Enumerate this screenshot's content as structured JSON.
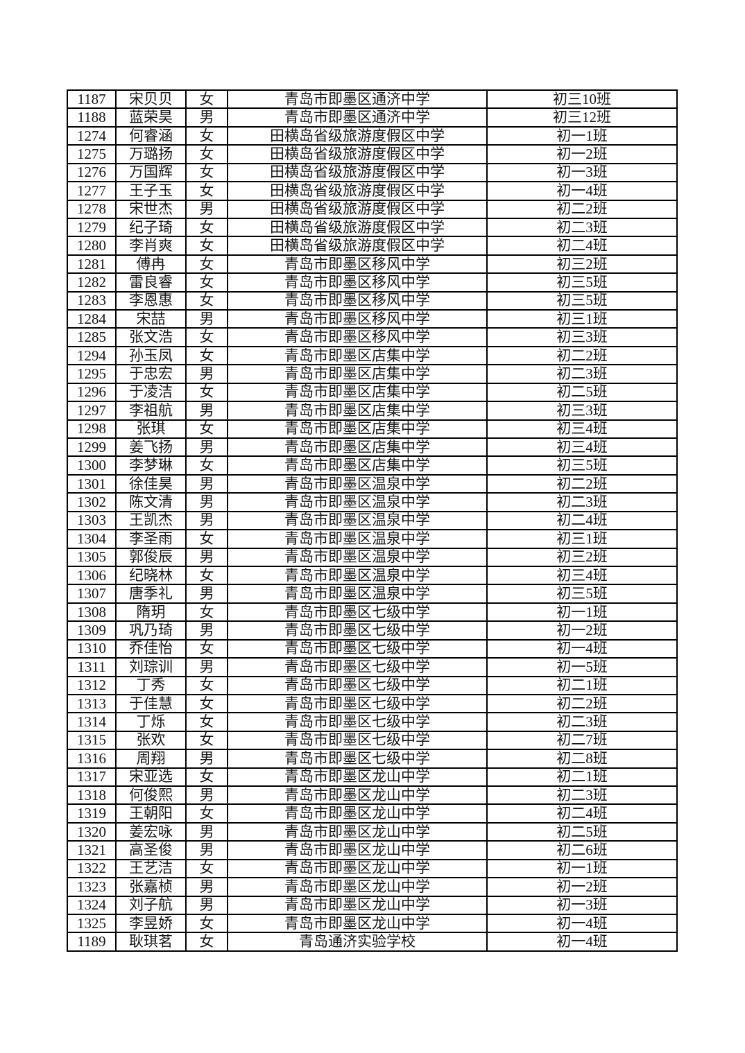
{
  "page": {
    "background_color": "#ffffff",
    "border_color": "#000000",
    "text_color": "#161616"
  },
  "table": {
    "rows": [
      {
        "id": "1187",
        "name": "宋贝贝",
        "gender": "女",
        "school": "青岛市即墨区通济中学",
        "class": "初三10班"
      },
      {
        "id": "1188",
        "name": "蓝荣昊",
        "gender": "男",
        "school": "青岛市即墨区通济中学",
        "class": "初三12班"
      },
      {
        "id": "1274",
        "name": "何睿涵",
        "gender": "女",
        "school": "田横岛省级旅游度假区中学",
        "class": "初一1班"
      },
      {
        "id": "1275",
        "name": "万璐扬",
        "gender": "女",
        "school": "田横岛省级旅游度假区中学",
        "class": "初一2班"
      },
      {
        "id": "1276",
        "name": "万国辉",
        "gender": "女",
        "school": "田横岛省级旅游度假区中学",
        "class": "初一3班"
      },
      {
        "id": "1277",
        "name": "王子玉",
        "gender": "女",
        "school": "田横岛省级旅游度假区中学",
        "class": "初一4班"
      },
      {
        "id": "1278",
        "name": "宋世杰",
        "gender": "男",
        "school": "田横岛省级旅游度假区中学",
        "class": "初二2班"
      },
      {
        "id": "1279",
        "name": "纪子琦",
        "gender": "女",
        "school": "田横岛省级旅游度假区中学",
        "class": "初二3班"
      },
      {
        "id": "1280",
        "name": "李肖爽",
        "gender": "女",
        "school": "田横岛省级旅游度假区中学",
        "class": "初二4班"
      },
      {
        "id": "1281",
        "name": "傅冉",
        "gender": "女",
        "school": "青岛市即墨区移风中学",
        "class": "初三2班"
      },
      {
        "id": "1282",
        "name": "雷良睿",
        "gender": "女",
        "school": "青岛市即墨区移风中学",
        "class": "初三5班"
      },
      {
        "id": "1283",
        "name": "李恩惠",
        "gender": "女",
        "school": "青岛市即墨区移风中学",
        "class": "初三5班"
      },
      {
        "id": "1284",
        "name": "宋喆",
        "gender": "男",
        "school": "青岛市即墨区移风中学",
        "class": "初三1班"
      },
      {
        "id": "1285",
        "name": "张文浩",
        "gender": "女",
        "school": "青岛市即墨区移风中学",
        "class": "初三3班"
      },
      {
        "id": "1294",
        "name": "孙玉凤",
        "gender": "女",
        "school": "青岛市即墨区店集中学",
        "class": "初二2班"
      },
      {
        "id": "1295",
        "name": "于忠宏",
        "gender": "男",
        "school": "青岛市即墨区店集中学",
        "class": "初二3班"
      },
      {
        "id": "1296",
        "name": "于凌洁",
        "gender": "女",
        "school": "青岛市即墨区店集中学",
        "class": "初二5班"
      },
      {
        "id": "1297",
        "name": "李祖航",
        "gender": "男",
        "school": "青岛市即墨区店集中学",
        "class": "初三3班"
      },
      {
        "id": "1298",
        "name": "张琪",
        "gender": "女",
        "school": "青岛市即墨区店集中学",
        "class": "初三4班"
      },
      {
        "id": "1299",
        "name": "姜飞扬",
        "gender": "男",
        "school": "青岛市即墨区店集中学",
        "class": "初三4班"
      },
      {
        "id": "1300",
        "name": "李梦琳",
        "gender": "女",
        "school": "青岛市即墨区店集中学",
        "class": "初三5班"
      },
      {
        "id": "1301",
        "name": "徐佳昊",
        "gender": "男",
        "school": "青岛市即墨区温泉中学",
        "class": "初二2班"
      },
      {
        "id": "1302",
        "name": "陈文清",
        "gender": "男",
        "school": "青岛市即墨区温泉中学",
        "class": "初二3班"
      },
      {
        "id": "1303",
        "name": "王凯杰",
        "gender": "男",
        "school": "青岛市即墨区温泉中学",
        "class": "初二4班"
      },
      {
        "id": "1304",
        "name": "李圣雨",
        "gender": "女",
        "school": "青岛市即墨区温泉中学",
        "class": "初三1班"
      },
      {
        "id": "1305",
        "name": "郭俊辰",
        "gender": "男",
        "school": "青岛市即墨区温泉中学",
        "class": "初三2班"
      },
      {
        "id": "1306",
        "name": "纪晓林",
        "gender": "女",
        "school": "青岛市即墨区温泉中学",
        "class": "初三4班"
      },
      {
        "id": "1307",
        "name": "唐季礼",
        "gender": "男",
        "school": "青岛市即墨区温泉中学",
        "class": "初三5班"
      },
      {
        "id": "1308",
        "name": "隋玥",
        "gender": "女",
        "school": "青岛市即墨区七级中学",
        "class": "初一1班"
      },
      {
        "id": "1309",
        "name": "巩乃琦",
        "gender": "男",
        "school": "青岛市即墨区七级中学",
        "class": "初一2班"
      },
      {
        "id": "1310",
        "name": "乔佳怡",
        "gender": "女",
        "school": "青岛市即墨区七级中学",
        "class": "初一4班"
      },
      {
        "id": "1311",
        "name": "刘琮训",
        "gender": "男",
        "school": "青岛市即墨区七级中学",
        "class": "初一5班"
      },
      {
        "id": "1312",
        "name": "丁秀",
        "gender": "女",
        "school": "青岛市即墨区七级中学",
        "class": "初二1班"
      },
      {
        "id": "1313",
        "name": "于佳慧",
        "gender": "女",
        "school": "青岛市即墨区七级中学",
        "class": "初二2班"
      },
      {
        "id": "1314",
        "name": "丁烁",
        "gender": "女",
        "school": "青岛市即墨区七级中学",
        "class": "初二3班"
      },
      {
        "id": "1315",
        "name": "张欢",
        "gender": "女",
        "school": "青岛市即墨区七级中学",
        "class": "初二7班"
      },
      {
        "id": "1316",
        "name": "周翔",
        "gender": "男",
        "school": "青岛市即墨区七级中学",
        "class": "初二8班"
      },
      {
        "id": "1317",
        "name": "宋亚选",
        "gender": "女",
        "school": "青岛市即墨区龙山中学",
        "class": "初二1班"
      },
      {
        "id": "1318",
        "name": "何俊熙",
        "gender": "男",
        "school": "青岛市即墨区龙山中学",
        "class": "初二3班"
      },
      {
        "id": "1319",
        "name": "王朝阳",
        "gender": "女",
        "school": "青岛市即墨区龙山中学",
        "class": "初二4班"
      },
      {
        "id": "1320",
        "name": "姜宏咏",
        "gender": "男",
        "school": "青岛市即墨区龙山中学",
        "class": "初二5班"
      },
      {
        "id": "1321",
        "name": "高圣俊",
        "gender": "男",
        "school": "青岛市即墨区龙山中学",
        "class": "初二6班"
      },
      {
        "id": "1322",
        "name": "王艺洁",
        "gender": "女",
        "school": "青岛市即墨区龙山中学",
        "class": "初一1班"
      },
      {
        "id": "1323",
        "name": "张嘉桢",
        "gender": "男",
        "school": "青岛市即墨区龙山中学",
        "class": "初一2班"
      },
      {
        "id": "1324",
        "name": "刘子航",
        "gender": "男",
        "school": "青岛市即墨区龙山中学",
        "class": "初一3班"
      },
      {
        "id": "1325",
        "name": "李昱娇",
        "gender": "女",
        "school": "青岛市即墨区龙山中学",
        "class": "初一4班"
      },
      {
        "id": "1189",
        "name": "耿琪茗",
        "gender": "女",
        "school": "青岛通济实验学校",
        "class": "初一4班"
      }
    ]
  }
}
